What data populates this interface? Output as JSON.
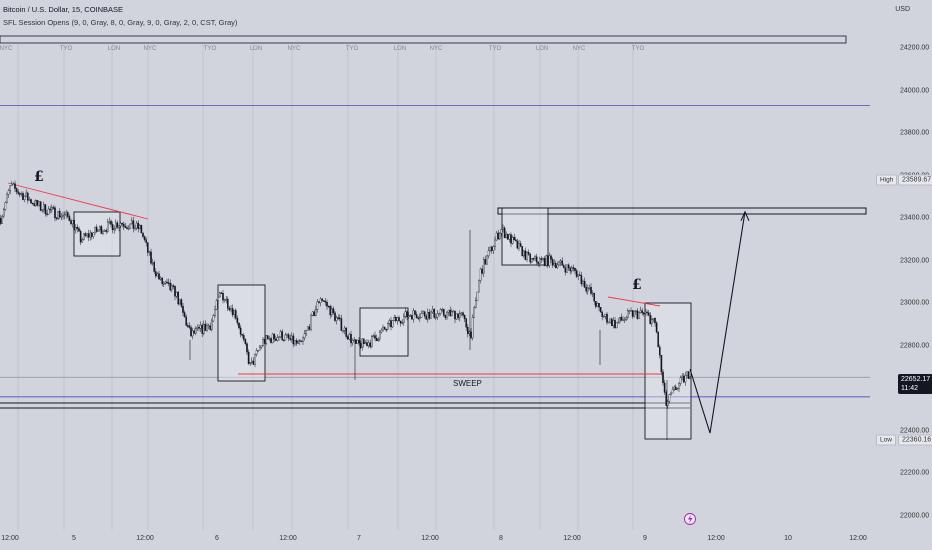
{
  "header": {
    "symbol_line": "Bitcoin / U.S. Dollar, 15, COINBASE",
    "indicator_line": "SFL Session Opens (9, 0, Gray, 8, 0, Gray, 9, 0, Gray, 2, 0, CST, Gray)"
  },
  "currency": "USD",
  "session_labels": [
    {
      "text": "NYC"
    },
    {
      "text": "TYO"
    },
    {
      "text": "LON"
    },
    {
      "text": "NYC"
    },
    {
      "text": "TYO"
    },
    {
      "text": "LON"
    },
    {
      "text": "NYC"
    },
    {
      "text": "TYO"
    },
    {
      "text": "LON"
    },
    {
      "text": "NYC"
    },
    {
      "text": "TYO"
    },
    {
      "text": "LON"
    },
    {
      "text": "NYC"
    },
    {
      "text": "TYO"
    }
  ],
  "annotations": {
    "pound_1": "£",
    "pound_2": "£",
    "sweep": "SWEEP"
  },
  "price_tags": {
    "high_label": "High",
    "high_value": "23589.67",
    "current_value": "22652.17",
    "current_timer": "11:42",
    "low_label": "Low",
    "low_value": "22360.16"
  },
  "colors": {
    "background": "#d1d4dc",
    "candle": "#131722",
    "red_line": "#f23645",
    "blue_line": "#3030c0",
    "accent_icon": "#9c27b0"
  },
  "chart_data": {
    "type": "line",
    "title": "Bitcoin / U.S. Dollar, 15, COINBASE",
    "xlabel": "",
    "ylabel": "USD",
    "ylim": [
      21950,
      24300
    ],
    "y_ticks": [
      22000,
      22200,
      22400,
      22600,
      22800,
      23000,
      23200,
      23400,
      23600,
      23800,
      24000,
      24200
    ],
    "x_ticks": [
      "12:00",
      "5",
      "12:00",
      "6",
      "12:00",
      "7",
      "12:00",
      "8",
      "12:00",
      "9",
      "12:00",
      "10",
      "12:00"
    ],
    "series": [
      {
        "x": [
          0,
          10,
          40,
          70,
          80,
          100,
          120,
          140,
          150,
          160,
          175,
          190,
          210,
          220,
          235,
          250,
          262,
          280,
          300,
          320,
          340,
          355,
          370,
          395,
          410,
          440,
          460,
          470,
          480,
          500,
          510,
          530,
          550,
          575,
          590,
          600,
          615,
          630,
          645,
          655,
          665,
          675,
          690
        ],
        "y": [
          23400,
          23550,
          23450,
          23400,
          23300,
          23350,
          23380,
          23350,
          23200,
          23100,
          23050,
          22850,
          22900,
          23050,
          22950,
          22700,
          22820,
          22850,
          22800,
          23030,
          22900,
          22800,
          22820,
          22920,
          22950,
          22950,
          22950,
          22850,
          23150,
          23350,
          23300,
          23200,
          23200,
          23150,
          23050,
          22950,
          22900,
          22950,
          22950,
          22900,
          22520,
          22600,
          22680
        ]
      }
    ],
    "horizontal_levels": [
      {
        "price": 23930,
        "color": "blue"
      },
      {
        "price": 22652.17
      },
      {
        "price": 22560,
        "color": "blue"
      }
    ],
    "projection": {
      "x": [
        690,
        710,
        745
      ],
      "y": [
        22690,
        22390,
        23430
      ]
    }
  }
}
